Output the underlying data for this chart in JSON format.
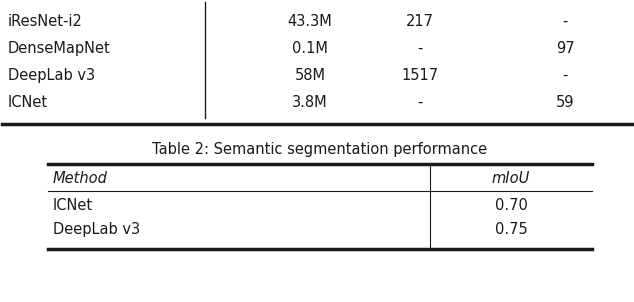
{
  "background_color": "#ffffff",
  "table1": {
    "rows": [
      [
        "iResNet-i2",
        "43.3M",
        "217",
        "-"
      ],
      [
        "DenseMapNet",
        "0.1M",
        "-",
        "97"
      ],
      [
        "DeepLab v3",
        "58M",
        "1517",
        "-"
      ],
      [
        "ICNet",
        "3.8M",
        "-",
        "59"
      ]
    ]
  },
  "table2": {
    "title": "Table 2: Semantic segmentation performance",
    "header": [
      "Method",
      "mIoU"
    ],
    "rows": [
      [
        "ICNet",
        "0.70"
      ],
      [
        "DeepLab v3",
        "0.75"
      ]
    ]
  },
  "font_size": 10.5,
  "text_color": "#1a1a1a",
  "line_color": "#1a1a1a"
}
